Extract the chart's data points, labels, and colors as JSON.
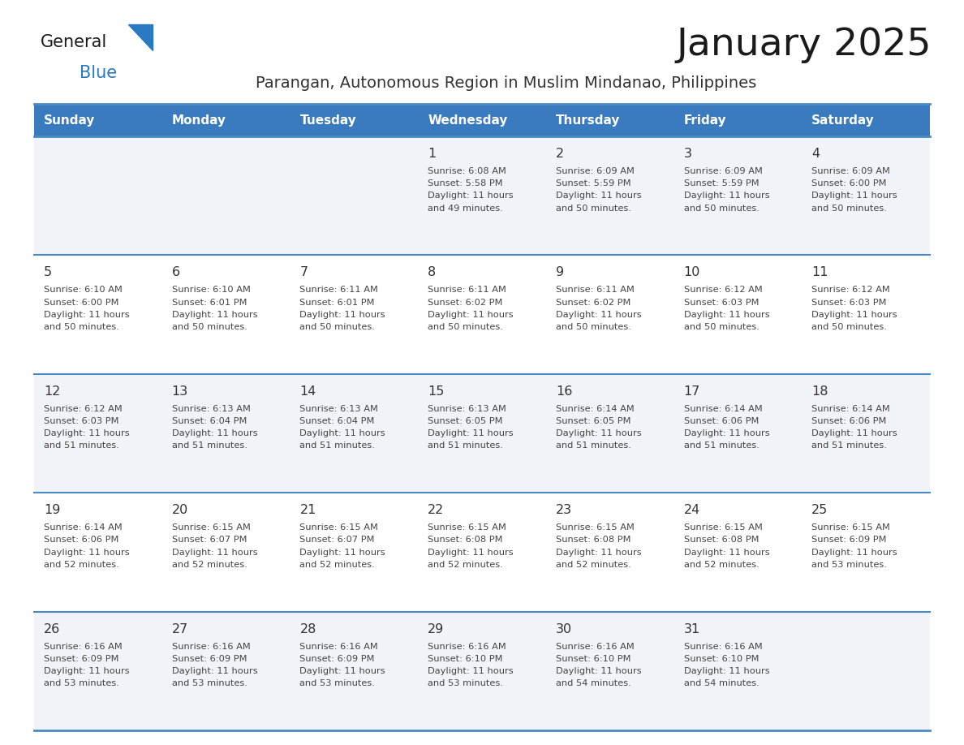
{
  "title": "January 2025",
  "subtitle": "Parangan, Autonomous Region in Muslim Mindanao, Philippines",
  "header_bg_color": "#3a7abf",
  "header_text_color": "#ffffff",
  "cell_bg_odd": "#f0f4f8",
  "cell_bg_even": "#ffffff",
  "day_number_color": "#333333",
  "cell_text_color": "#444444",
  "title_color": "#1a1a1a",
  "subtitle_color": "#333333",
  "logo_general_color": "#1a1a1a",
  "logo_blue_color": "#2879c0",
  "border_color": "#4a8ac4",
  "days_of_week": [
    "Sunday",
    "Monday",
    "Tuesday",
    "Wednesday",
    "Thursday",
    "Friday",
    "Saturday"
  ],
  "weeks": [
    [
      {
        "day": "",
        "sunrise": "",
        "sunset": "",
        "daylight": ""
      },
      {
        "day": "",
        "sunrise": "",
        "sunset": "",
        "daylight": ""
      },
      {
        "day": "",
        "sunrise": "",
        "sunset": "",
        "daylight": ""
      },
      {
        "day": "1",
        "sunrise": "6:08 AM",
        "sunset": "5:58 PM",
        "daylight": "11 hours and 49 minutes."
      },
      {
        "day": "2",
        "sunrise": "6:09 AM",
        "sunset": "5:59 PM",
        "daylight": "11 hours and 50 minutes."
      },
      {
        "day": "3",
        "sunrise": "6:09 AM",
        "sunset": "5:59 PM",
        "daylight": "11 hours and 50 minutes."
      },
      {
        "day": "4",
        "sunrise": "6:09 AM",
        "sunset": "6:00 PM",
        "daylight": "11 hours and 50 minutes."
      }
    ],
    [
      {
        "day": "5",
        "sunrise": "6:10 AM",
        "sunset": "6:00 PM",
        "daylight": "11 hours and 50 minutes."
      },
      {
        "day": "6",
        "sunrise": "6:10 AM",
        "sunset": "6:01 PM",
        "daylight": "11 hours and 50 minutes."
      },
      {
        "day": "7",
        "sunrise": "6:11 AM",
        "sunset": "6:01 PM",
        "daylight": "11 hours and 50 minutes."
      },
      {
        "day": "8",
        "sunrise": "6:11 AM",
        "sunset": "6:02 PM",
        "daylight": "11 hours and 50 minutes."
      },
      {
        "day": "9",
        "sunrise": "6:11 AM",
        "sunset": "6:02 PM",
        "daylight": "11 hours and 50 minutes."
      },
      {
        "day": "10",
        "sunrise": "6:12 AM",
        "sunset": "6:03 PM",
        "daylight": "11 hours and 50 minutes."
      },
      {
        "day": "11",
        "sunrise": "6:12 AM",
        "sunset": "6:03 PM",
        "daylight": "11 hours and 50 minutes."
      }
    ],
    [
      {
        "day": "12",
        "sunrise": "6:12 AM",
        "sunset": "6:03 PM",
        "daylight": "11 hours and 51 minutes."
      },
      {
        "day": "13",
        "sunrise": "6:13 AM",
        "sunset": "6:04 PM",
        "daylight": "11 hours and 51 minutes."
      },
      {
        "day": "14",
        "sunrise": "6:13 AM",
        "sunset": "6:04 PM",
        "daylight": "11 hours and 51 minutes."
      },
      {
        "day": "15",
        "sunrise": "6:13 AM",
        "sunset": "6:05 PM",
        "daylight": "11 hours and 51 minutes."
      },
      {
        "day": "16",
        "sunrise": "6:14 AM",
        "sunset": "6:05 PM",
        "daylight": "11 hours and 51 minutes."
      },
      {
        "day": "17",
        "sunrise": "6:14 AM",
        "sunset": "6:06 PM",
        "daylight": "11 hours and 51 minutes."
      },
      {
        "day": "18",
        "sunrise": "6:14 AM",
        "sunset": "6:06 PM",
        "daylight": "11 hours and 51 minutes."
      }
    ],
    [
      {
        "day": "19",
        "sunrise": "6:14 AM",
        "sunset": "6:06 PM",
        "daylight": "11 hours and 52 minutes."
      },
      {
        "day": "20",
        "sunrise": "6:15 AM",
        "sunset": "6:07 PM",
        "daylight": "11 hours and 52 minutes."
      },
      {
        "day": "21",
        "sunrise": "6:15 AM",
        "sunset": "6:07 PM",
        "daylight": "11 hours and 52 minutes."
      },
      {
        "day": "22",
        "sunrise": "6:15 AM",
        "sunset": "6:08 PM",
        "daylight": "11 hours and 52 minutes."
      },
      {
        "day": "23",
        "sunrise": "6:15 AM",
        "sunset": "6:08 PM",
        "daylight": "11 hours and 52 minutes."
      },
      {
        "day": "24",
        "sunrise": "6:15 AM",
        "sunset": "6:08 PM",
        "daylight": "11 hours and 52 minutes."
      },
      {
        "day": "25",
        "sunrise": "6:15 AM",
        "sunset": "6:09 PM",
        "daylight": "11 hours and 53 minutes."
      }
    ],
    [
      {
        "day": "26",
        "sunrise": "6:16 AM",
        "sunset": "6:09 PM",
        "daylight": "11 hours and 53 minutes."
      },
      {
        "day": "27",
        "sunrise": "6:16 AM",
        "sunset": "6:09 PM",
        "daylight": "11 hours and 53 minutes."
      },
      {
        "day": "28",
        "sunrise": "6:16 AM",
        "sunset": "6:09 PM",
        "daylight": "11 hours and 53 minutes."
      },
      {
        "day": "29",
        "sunrise": "6:16 AM",
        "sunset": "6:10 PM",
        "daylight": "11 hours and 53 minutes."
      },
      {
        "day": "30",
        "sunrise": "6:16 AM",
        "sunset": "6:10 PM",
        "daylight": "11 hours and 54 minutes."
      },
      {
        "day": "31",
        "sunrise": "6:16 AM",
        "sunset": "6:10 PM",
        "daylight": "11 hours and 54 minutes."
      },
      {
        "day": "",
        "sunrise": "",
        "sunset": "",
        "daylight": ""
      }
    ]
  ]
}
